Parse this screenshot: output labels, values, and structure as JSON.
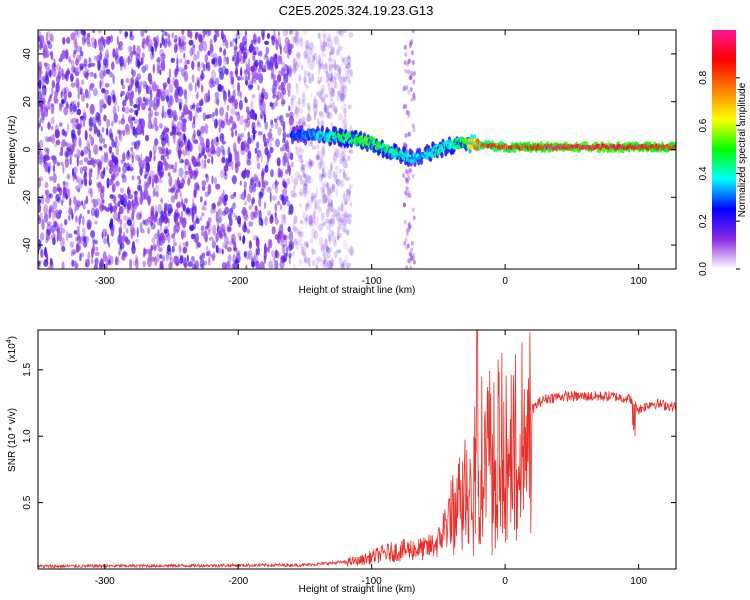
{
  "title": "C2E5.2025.324.19.23.G13",
  "chart_data": [
    {
      "type": "heatmap",
      "name": "spectrogram",
      "xlabel": "Height of straight line (km)",
      "ylabel": "Frequency (Hz)",
      "xlim": [
        -350,
        128
      ],
      "ylim": [
        -50,
        50
      ],
      "xticks": [
        -300,
        -200,
        -100,
        0,
        100
      ],
      "yticks": [
        -40,
        -20,
        0,
        20,
        40
      ],
      "colorbar": {
        "label": "Normalized spectral amplitude",
        "range": [
          0,
          1
        ],
        "ticks": [
          "0.0",
          "0.2",
          "0.4",
          "0.6",
          "0.8"
        ],
        "tick_values": [
          0.0,
          0.2,
          0.4,
          0.6,
          0.8
        ],
        "colormap": [
          "#ffffff",
          "#8a2be2",
          "#0000ff",
          "#00ffff",
          "#00ff00",
          "#ffff00",
          "#ff8000",
          "#ff0000",
          "#ff1493"
        ]
      },
      "signal_trace": {
        "x_km": [
          -160,
          -140,
          -120,
          -100,
          -90,
          -80,
          -70,
          -60,
          -50,
          -40,
          -30,
          -20,
          0,
          20,
          50,
          80,
          110,
          128
        ],
        "frequency_hz": [
          6,
          6,
          5,
          3,
          0,
          -2,
          -4,
          -2,
          0,
          2,
          3,
          2,
          1,
          1,
          1,
          1,
          1,
          1
        ],
        "amplitude": [
          0.25,
          0.35,
          0.45,
          0.5,
          0.45,
          0.4,
          0.35,
          0.35,
          0.4,
          0.4,
          0.5,
          0.8,
          0.85,
          0.9,
          0.95,
          0.95,
          0.9,
          0.9
        ]
      },
      "noise_region_x_km": [
        -350,
        -130
      ],
      "noise_column_x_km": -72
    },
    {
      "type": "line",
      "name": "snr",
      "color": "#e8302a",
      "xlabel": "Height of straight line (km)",
      "ylabel": "SNR (10 * v/v)",
      "scale_label": "(x10",
      "scale_exp": "4",
      "xlim": [
        -350,
        128
      ],
      "ylim": [
        0,
        1.8
      ],
      "xticks": [
        -300,
        -200,
        -100,
        0,
        100
      ],
      "yticks": [
        0.5,
        1.0,
        1.5
      ],
      "ytick_labels": [
        "0.5",
        "1.0",
        "1.5"
      ],
      "envelope": {
        "x": [
          -350,
          -150,
          -110,
          -90,
          -70,
          -60,
          -50,
          -40,
          -35,
          -30,
          -25,
          -20,
          -15,
          -10,
          -5,
          0,
          5,
          10,
          15,
          20,
          25,
          30,
          40,
          60,
          80,
          95,
          100,
          110,
          128
        ],
        "y": [
          0.02,
          0.03,
          0.06,
          0.12,
          0.15,
          0.15,
          0.2,
          0.45,
          0.55,
          0.7,
          0.85,
          0.95,
          1.0,
          1.0,
          1.05,
          1.05,
          1.05,
          1.1,
          1.15,
          1.2,
          1.25,
          1.28,
          1.3,
          1.3,
          1.3,
          1.28,
          1.2,
          1.25,
          1.22
        ]
      },
      "spike": {
        "x": -21,
        "y": 1.82
      }
    }
  ]
}
